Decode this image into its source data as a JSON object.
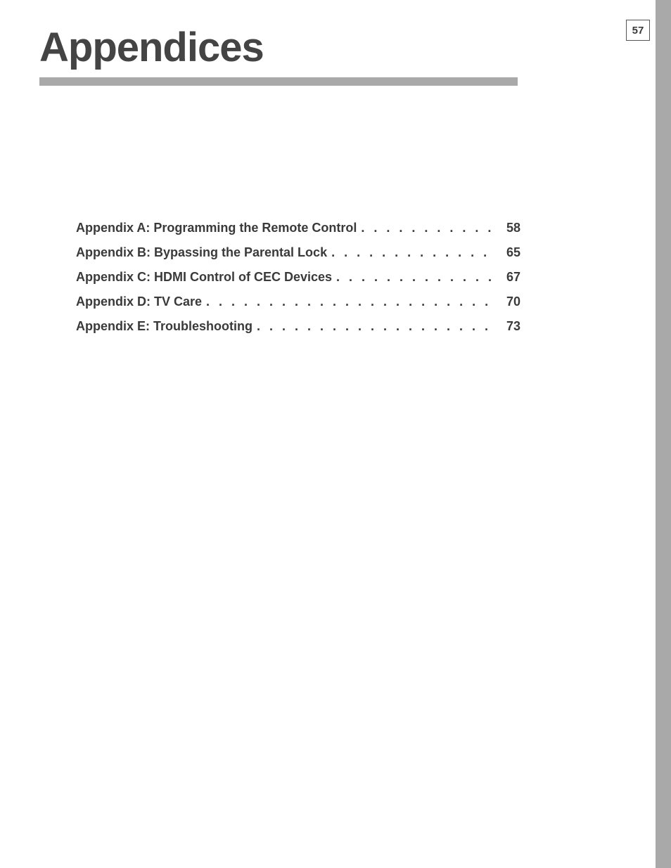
{
  "page_number": "57",
  "title": "Appendices",
  "colors": {
    "gray_bar": "#a9a9a9",
    "text": "#3a3a3a",
    "title_text": "#444444"
  },
  "toc": {
    "entries": [
      {
        "label": "Appendix A:  Programming the Remote Control",
        "page": "58"
      },
      {
        "label": "Appendix B:  Bypassing the Parental Lock",
        "page": "65"
      },
      {
        "label": "Appendix C:  HDMI Control of CEC Devices",
        "page": "67"
      },
      {
        "label": "Appendix D:  TV Care",
        "page": "70"
      },
      {
        "label": "Appendix E:  Troubleshooting",
        "page": "73"
      }
    ]
  }
}
